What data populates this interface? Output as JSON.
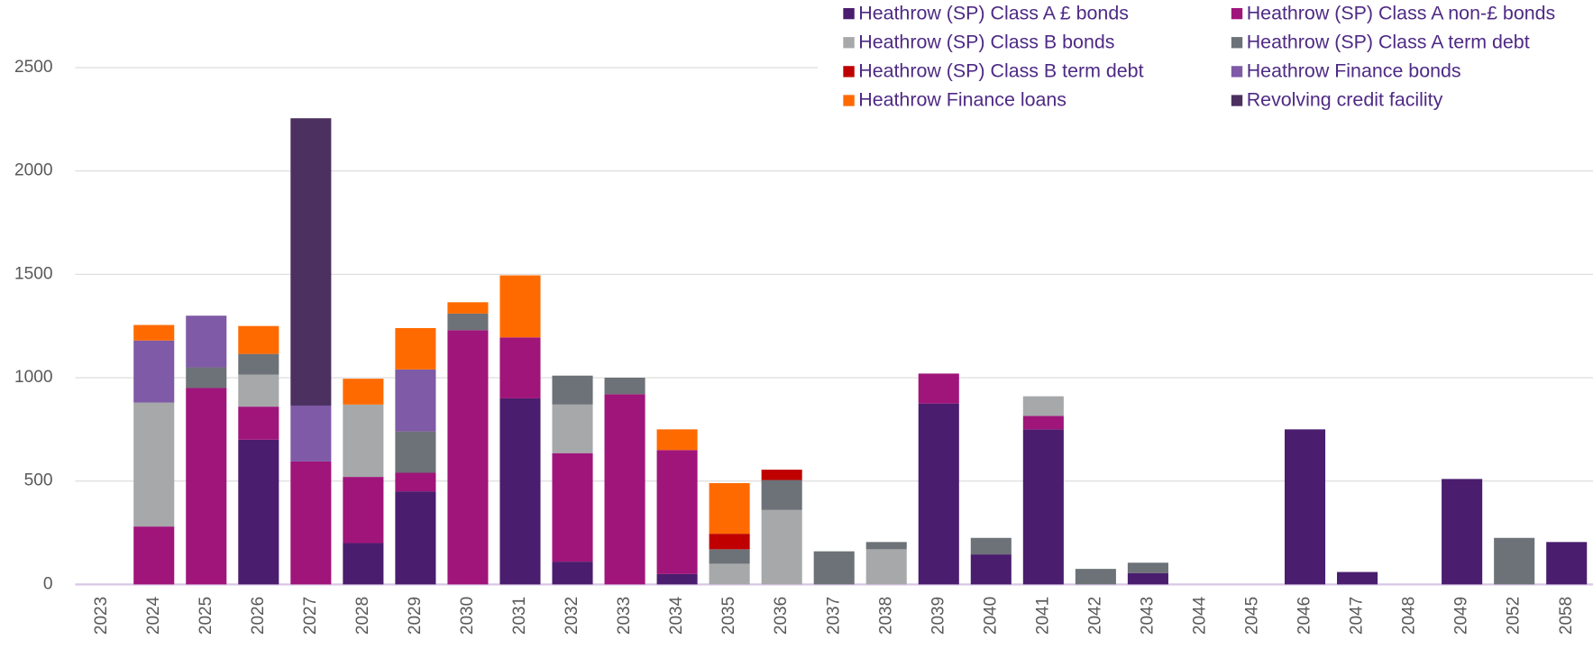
{
  "chart_data": {
    "type": "stacked_bar",
    "categories": [
      "2023",
      "2024",
      "2025",
      "2026",
      "2027",
      "2028",
      "2029",
      "2030",
      "2031",
      "2032",
      "2033",
      "2034",
      "2035",
      "2036",
      "2037",
      "2038",
      "2039",
      "2040",
      "2041",
      "2042",
      "2043",
      "2044",
      "2045",
      "2046",
      "2047",
      "2048",
      "2049",
      "2052",
      "2058"
    ],
    "series": [
      {
        "name": "Heathrow (SP) Class A £ bonds",
        "color": "#4a1d6e",
        "values": [
          0,
          0,
          0,
          700,
          0,
          200,
          450,
          0,
          900,
          110,
          0,
          50,
          0,
          0,
          0,
          0,
          875,
          145,
          750,
          0,
          55,
          0,
          0,
          750,
          60,
          0,
          510,
          0,
          205
        ]
      },
      {
        "name": "Heathrow (SP) Class A non-£ bonds",
        "color": "#a0157a",
        "values": [
          0,
          280,
          950,
          160,
          595,
          320,
          90,
          1230,
          295,
          525,
          920,
          600,
          0,
          0,
          0,
          0,
          145,
          0,
          65,
          0,
          0,
          0,
          0,
          0,
          0,
          0,
          0,
          0,
          0
        ]
      },
      {
        "name": "Heathrow (SP) Class B bonds",
        "color": "#a6a8aa",
        "values": [
          0,
          600,
          0,
          155,
          0,
          350,
          0,
          0,
          0,
          235,
          0,
          0,
          100,
          360,
          0,
          170,
          0,
          0,
          95,
          0,
          0,
          0,
          0,
          0,
          0,
          0,
          0,
          0,
          0
        ]
      },
      {
        "name": "Heathrow (SP) Class A term debt",
        "color": "#6d7278",
        "values": [
          0,
          0,
          100,
          100,
          0,
          0,
          200,
          80,
          0,
          140,
          80,
          0,
          70,
          145,
          160,
          35,
          0,
          80,
          0,
          75,
          50,
          0,
          0,
          0,
          0,
          0,
          0,
          225,
          0
        ]
      },
      {
        "name": "Heathrow (SP) Class B term debt",
        "color": "#c00000",
        "values": [
          0,
          0,
          0,
          0,
          0,
          0,
          0,
          0,
          0,
          0,
          0,
          0,
          75,
          50,
          0,
          0,
          0,
          0,
          0,
          0,
          0,
          0,
          0,
          0,
          0,
          0,
          0,
          0,
          0
        ]
      },
      {
        "name": "Heathrow Finance bonds",
        "color": "#7f5aa6",
        "values": [
          0,
          300,
          250,
          0,
          270,
          0,
          300,
          0,
          0,
          0,
          0,
          0,
          0,
          0,
          0,
          0,
          0,
          0,
          0,
          0,
          0,
          0,
          0,
          0,
          0,
          0,
          0,
          0,
          0
        ]
      },
      {
        "name": "Heathrow Finance loans",
        "color": "#ff6a00",
        "values": [
          0,
          75,
          0,
          135,
          0,
          125,
          200,
          55,
          300,
          0,
          0,
          100,
          245,
          0,
          0,
          0,
          0,
          0,
          0,
          0,
          0,
          0,
          0,
          0,
          0,
          0,
          0,
          0,
          0
        ]
      },
      {
        "name": "Revolving credit facility",
        "color": "#4b3060",
        "values": [
          0,
          0,
          0,
          0,
          1390,
          0,
          0,
          0,
          0,
          0,
          0,
          0,
          0,
          0,
          0,
          0,
          0,
          0,
          0,
          0,
          0,
          0,
          0,
          0,
          0,
          0,
          0,
          0,
          0
        ]
      }
    ],
    "ylim": [
      0,
      2500
    ],
    "yticks": [
      0,
      500,
      1000,
      1500,
      2000,
      2500
    ],
    "grid": true,
    "legend": "top-right"
  }
}
